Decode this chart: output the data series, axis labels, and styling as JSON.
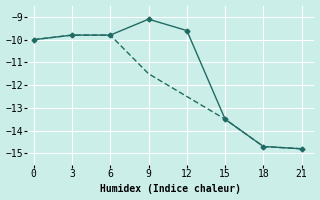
{
  "line1_x": [
    0,
    3,
    6,
    9,
    12,
    15,
    18,
    21
  ],
  "line1_y": [
    -10,
    -9.8,
    -9.8,
    -9.1,
    -9.6,
    -13.5,
    -14.7,
    -14.8
  ],
  "line2_x": [
    0,
    3,
    6,
    9,
    12,
    15,
    18,
    21
  ],
  "line2_y": [
    -10,
    -9.8,
    -9.8,
    -11.5,
    -12.5,
    -13.5,
    -14.7,
    -14.8
  ],
  "color": "#1f6b63",
  "marker": "D",
  "markersize": 2.5,
  "linewidth": 1.0,
  "xlabel": "Humidex (Indice chaleur)",
  "xlim": [
    -0.5,
    22
  ],
  "ylim": [
    -15.5,
    -8.5
  ],
  "xticks": [
    0,
    3,
    6,
    9,
    12,
    15,
    18,
    21
  ],
  "yticks": [
    -9,
    -10,
    -11,
    -12,
    -13,
    -14,
    -15
  ],
  "bg_color": "#cceee8",
  "grid_color": "#ffffff",
  "xlabel_fontsize": 7,
  "tick_fontsize": 7
}
